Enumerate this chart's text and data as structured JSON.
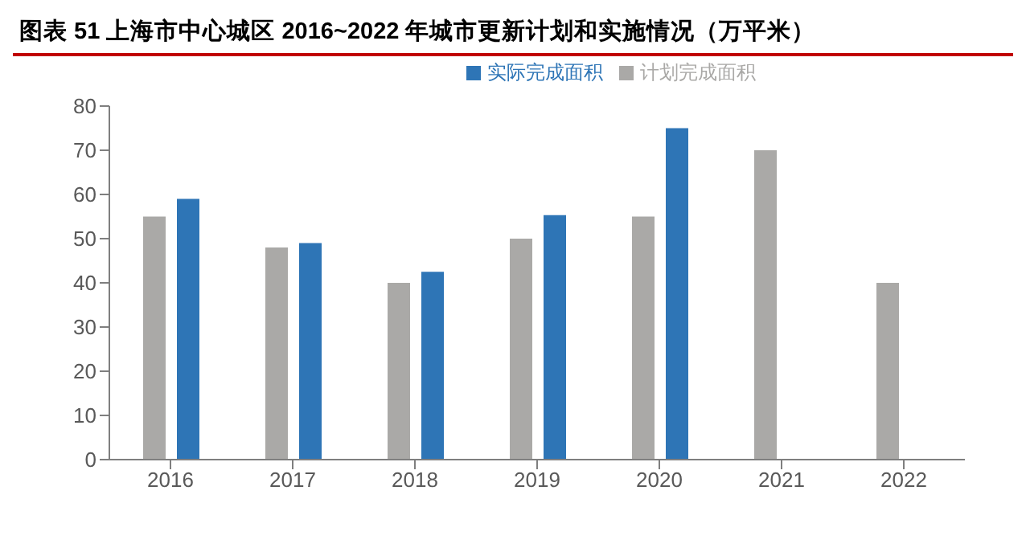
{
  "chart_data": {
    "type": "bar",
    "title": "图表 51 上海市中心城区 2016~2022 年城市更新计划和实施情况（万平米）",
    "categories": [
      "2016",
      "2017",
      "2018",
      "2019",
      "2020",
      "2021",
      "2022"
    ],
    "series": [
      {
        "name": "计划完成面积",
        "color": "#aaa9a7",
        "values": [
          55,
          48,
          40,
          50,
          55,
          70,
          40
        ]
      },
      {
        "name": "实际完成面积",
        "color": "#2e75b6",
        "values": [
          59,
          49,
          42.5,
          55.3,
          75,
          null,
          null
        ]
      }
    ],
    "ylim": [
      0,
      80
    ],
    "yticks": [
      0,
      10,
      20,
      30,
      40,
      50,
      60,
      70,
      80
    ],
    "grid": false,
    "legend": "top right"
  }
}
